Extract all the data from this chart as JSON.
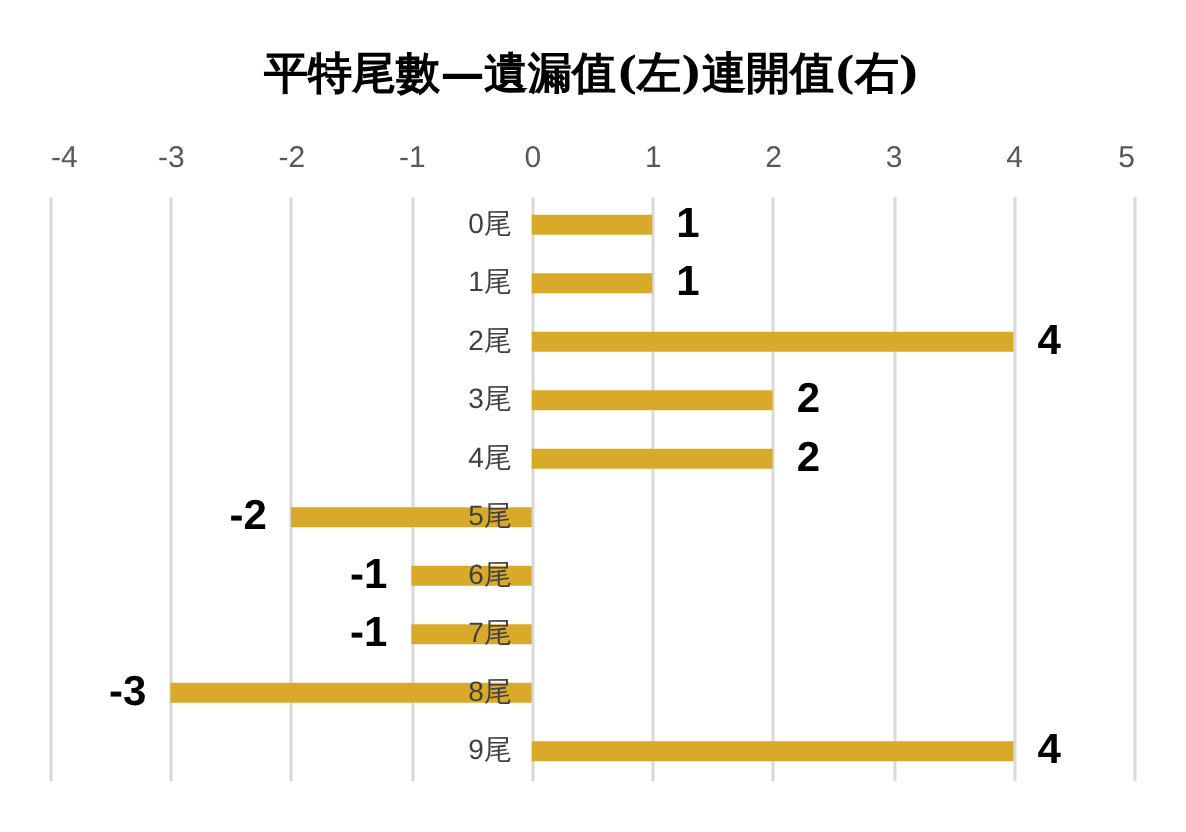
{
  "chart_data": {
    "type": "bar",
    "orientation": "horizontal",
    "title": "平特尾數—遺漏值(左)連開值(右)",
    "categories": [
      "0尾",
      "1尾",
      "2尾",
      "3尾",
      "4尾",
      "5尾",
      "6尾",
      "7尾",
      "8尾",
      "9尾"
    ],
    "values": [
      1,
      1,
      4,
      2,
      2,
      -2,
      -1,
      -1,
      -3,
      4
    ],
    "color": "#d9aa2a",
    "xlim": [
      -4,
      5
    ],
    "xticks": [
      -4,
      -3,
      -2,
      -1,
      0,
      1,
      2,
      3,
      4,
      5
    ],
    "grid": "x",
    "data_labels": true
  }
}
